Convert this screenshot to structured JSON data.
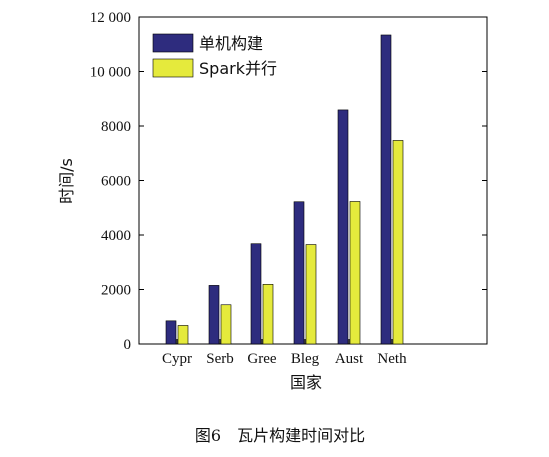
{
  "chart_data": {
    "type": "bar",
    "categories": [
      "Cypr",
      "Serb",
      "Gree",
      "Bleg",
      "Aust",
      "Neth"
    ],
    "series": [
      {
        "name": "单机构建",
        "color": "#2e2c7e",
        "values": [
          850,
          2150,
          3680,
          5220,
          8590,
          11340
        ]
      },
      {
        "name": "Spark并行",
        "color": "#e5ea3c",
        "values": [
          680,
          1440,
          2190,
          3650,
          5230,
          7470
        ]
      }
    ],
    "xlabel": "国家",
    "ylabel": "时间/s",
    "ylim": [
      0,
      12000
    ],
    "yticks": [
      0,
      2000,
      4000,
      6000,
      8000,
      10000,
      12000
    ],
    "ytick_labels": [
      "0",
      "2000",
      "4000",
      "6000",
      "8000",
      "10 000",
      "12 000"
    ],
    "grid": false,
    "legend_position": "top-left"
  },
  "caption": "图6　瓦片构建时间对比"
}
